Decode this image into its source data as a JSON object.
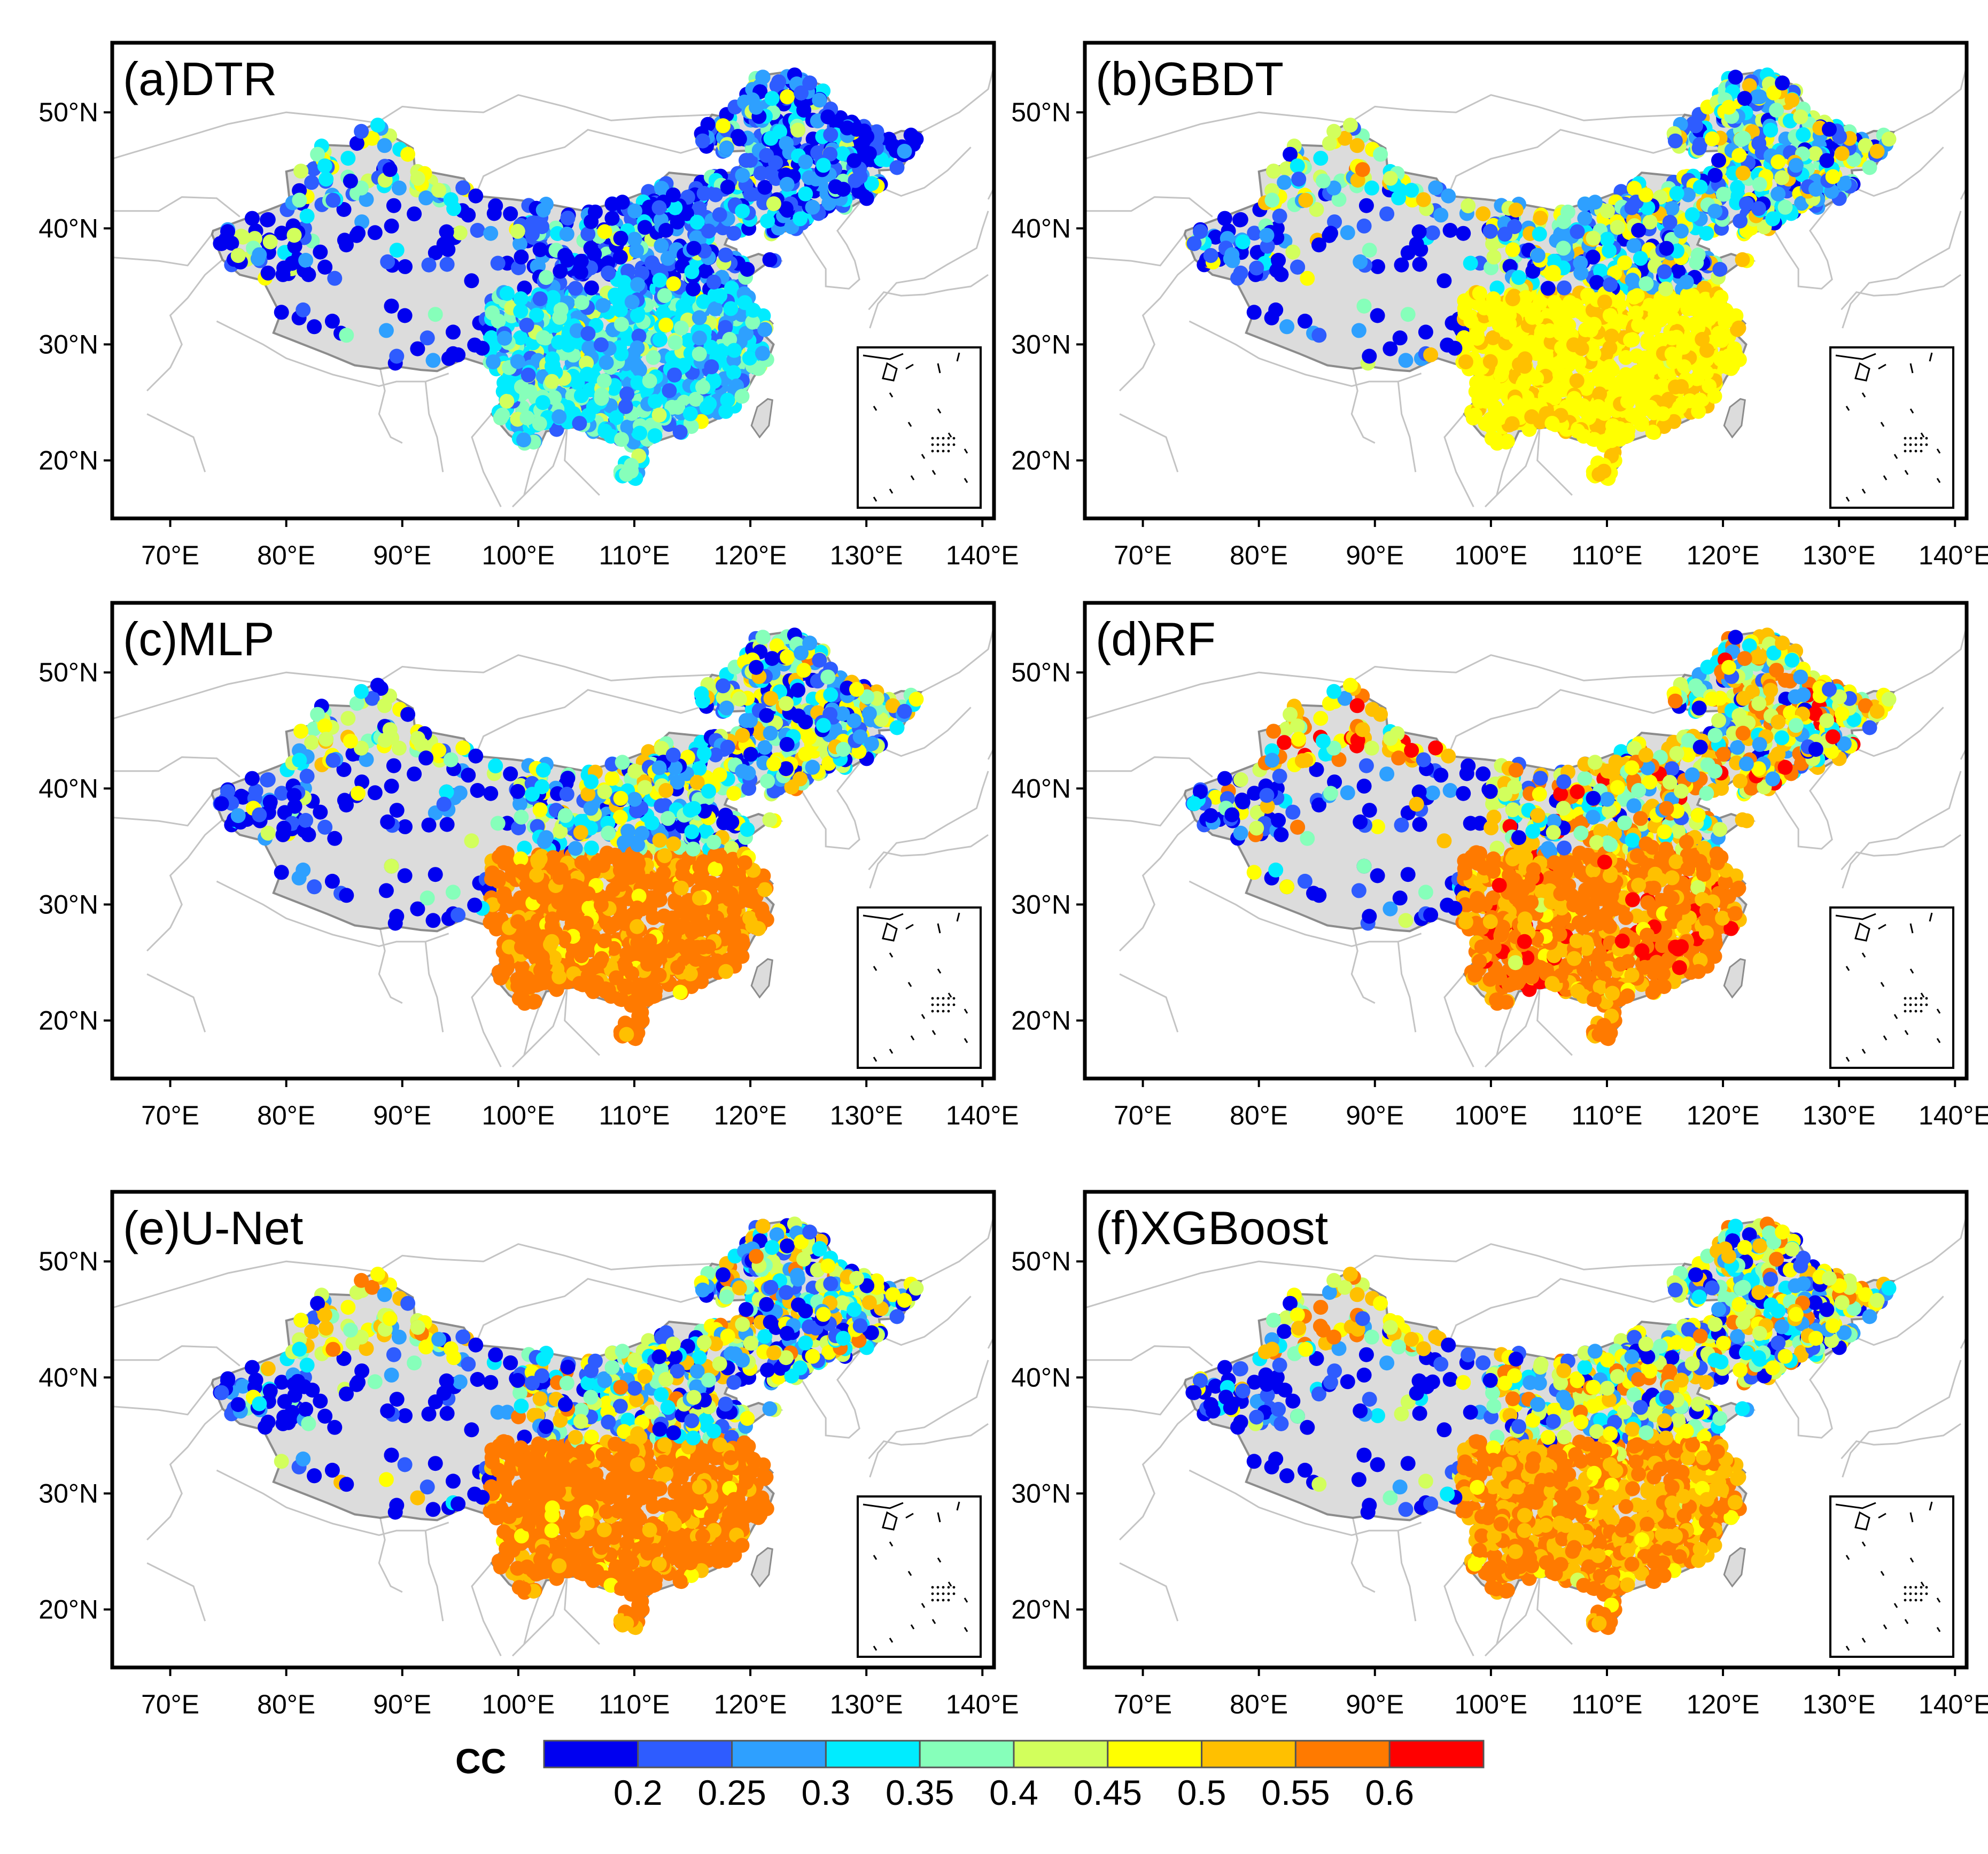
{
  "figure": {
    "panels": [
      {
        "title": "(a)DTR",
        "scheme": "dtr"
      },
      {
        "title": "(b)GBDT",
        "scheme": "gbdt"
      },
      {
        "title": "(c)MLP",
        "scheme": "mlp"
      },
      {
        "title": "(d)RF",
        "scheme": "rf"
      },
      {
        "title": "(e)U-Net",
        "scheme": "unet"
      },
      {
        "title": "(f)XGBoost",
        "scheme": "xgb"
      }
    ],
    "lon_ticks": [
      "70°E",
      "80°E",
      "90°E",
      "100°E",
      "110°E",
      "120°E",
      "130°E",
      "140°E"
    ],
    "lat_ticks": [
      "20°N",
      "30°N",
      "40°N",
      "50°N"
    ],
    "lon_values": [
      70,
      80,
      90,
      100,
      110,
      120,
      130,
      140
    ],
    "lat_values": [
      20,
      30,
      40,
      50
    ],
    "lon_range": [
      65,
      141
    ],
    "lat_range": [
      15,
      56
    ]
  },
  "colorbar": {
    "title": "CC",
    "labels": [
      "0.2",
      "0.25",
      "0.3",
      "0.35",
      "0.4",
      "0.45",
      "0.5",
      "0.55",
      "0.6"
    ],
    "colors": [
      "#0000f0",
      "#2e5cff",
      "#2ea0ff",
      "#00ecff",
      "#86ffba",
      "#d2ff5c",
      "#ffff00",
      "#ffc000",
      "#ff7a00",
      "#ff0000"
    ]
  },
  "colors": {
    "land": "#dcdcdc",
    "borders": "#c4c4c4",
    "china_outline": "#8c8c8c",
    "frame": "#000000"
  }
}
